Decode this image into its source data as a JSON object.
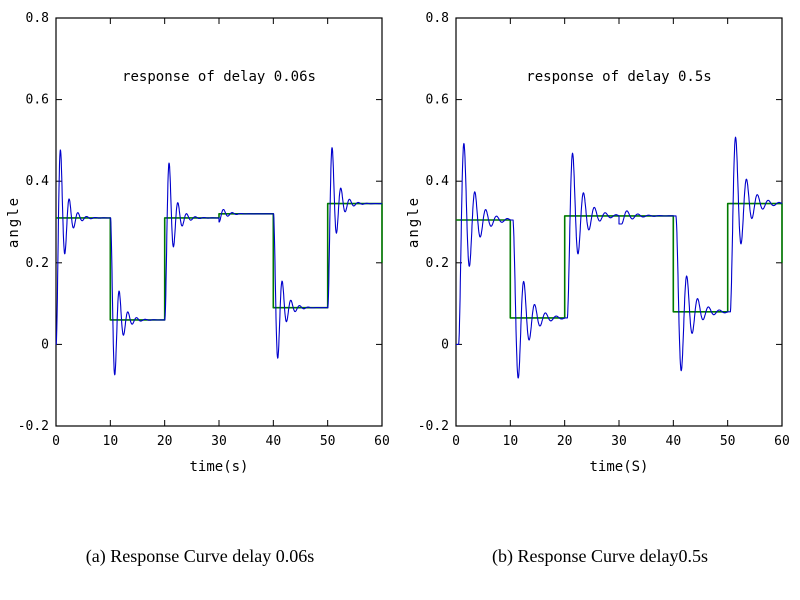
{
  "page": {
    "background": "#ffffff",
    "axis_color": "#000000",
    "reference_color": "#007a00",
    "response_color": "#0000cc"
  },
  "chart_data": [
    {
      "type": "line",
      "title": "response of delay 0.06s",
      "xlabel": "time(s)",
      "ylabel": "angle",
      "caption": "(a) Response Curve delay 0.06s",
      "xlim": [
        0,
        60
      ],
      "ylim": [
        -0.2,
        0.8
      ],
      "xticks": [
        0,
        10,
        20,
        30,
        40,
        50,
        60
      ],
      "xtick_labels": [
        "0",
        "10",
        "20",
        "30",
        "40",
        "50",
        "60"
      ],
      "yticks": [
        -0.2,
        0,
        0.2,
        0.4,
        0.6,
        0.8
      ],
      "ytick_labels": [
        "-0.2",
        "0",
        "0.2",
        "0.4",
        "0.6",
        "0.8"
      ],
      "grid": false,
      "legend": "none",
      "series": [
        {
          "name": "reference-step",
          "color": "#007a00",
          "style": "step",
          "width": 1.6,
          "points": [
            [
              0,
              0.31
            ],
            [
              10,
              0.31
            ],
            [
              10,
              0.06
            ],
            [
              20,
              0.06
            ],
            [
              20,
              0.31
            ],
            [
              30,
              0.31
            ],
            [
              30,
              0.32
            ],
            [
              40,
              0.32
            ],
            [
              40,
              0.09
            ],
            [
              50,
              0.09
            ],
            [
              50,
              0.345
            ],
            [
              60,
              0.345
            ],
            [
              60,
              0.2
            ]
          ]
        },
        {
          "name": "response",
          "color": "#0000cc",
          "style": "damped-oscillation",
          "width": 1.1,
          "delay": 0.06,
          "segments": [
            {
              "t0": 0,
              "t1": 10,
              "from": 0,
              "to": 0.31,
              "period": 1.6,
              "decay": 0.8
            },
            {
              "t0": 10,
              "t1": 20,
              "from": 0.31,
              "to": 0.06,
              "period": 1.6,
              "decay": 0.8
            },
            {
              "t0": 20,
              "t1": 30,
              "from": 0.06,
              "to": 0.31,
              "period": 1.6,
              "decay": 0.8
            },
            {
              "t0": 30,
              "t1": 40,
              "from": 0.3,
              "to": 0.32,
              "period": 1.6,
              "decay": 0.8
            },
            {
              "t0": 40,
              "t1": 50,
              "from": 0.32,
              "to": 0.09,
              "period": 1.6,
              "decay": 0.8
            },
            {
              "t0": 50,
              "t1": 60,
              "from": 0.09,
              "to": 0.345,
              "period": 1.6,
              "decay": 0.8
            }
          ]
        }
      ]
    },
    {
      "type": "line",
      "title": "response of delay 0.5s",
      "xlabel": "time(S)",
      "ylabel": "angle",
      "caption": "(b) Response Curve delay0.5s",
      "xlim": [
        0,
        60
      ],
      "ylim": [
        -0.2,
        0.8
      ],
      "xticks": [
        0,
        10,
        20,
        30,
        40,
        50,
        60
      ],
      "xtick_labels": [
        "0",
        "10",
        "20",
        "30",
        "40",
        "50",
        "60"
      ],
      "yticks": [
        -0.2,
        0,
        0.2,
        0.4,
        0.6,
        0.8
      ],
      "ytick_labels": [
        "-0.2",
        "0",
        "0.2",
        "0.4",
        "0.6",
        "0.8"
      ],
      "grid": false,
      "legend": "none",
      "series": [
        {
          "name": "reference-step",
          "color": "#007a00",
          "style": "step",
          "width": 1.6,
          "points": [
            [
              0,
              0.305
            ],
            [
              10,
              0.305
            ],
            [
              10,
              0.065
            ],
            [
              20,
              0.065
            ],
            [
              20,
              0.315
            ],
            [
              40,
              0.315
            ],
            [
              40,
              0.08
            ],
            [
              50,
              0.08
            ],
            [
              50,
              0.345
            ],
            [
              60,
              0.345
            ],
            [
              60,
              0.2
            ]
          ]
        },
        {
          "name": "response",
          "color": "#0000cc",
          "style": "damped-oscillation",
          "width": 1.1,
          "delay": 0.5,
          "segments": [
            {
              "t0": 0,
              "t1": 10,
              "from": 0,
              "to": 0.305,
              "period": 2.0,
              "decay": 0.5
            },
            {
              "t0": 10,
              "t1": 20,
              "from": 0.305,
              "to": 0.065,
              "period": 2.0,
              "decay": 0.5
            },
            {
              "t0": 20,
              "t1": 30,
              "from": 0.065,
              "to": 0.315,
              "period": 2.0,
              "decay": 0.5
            },
            {
              "t0": 30,
              "t1": 40,
              "from": 0.295,
              "to": 0.315,
              "period": 2.0,
              "decay": 0.5
            },
            {
              "t0": 40,
              "t1": 50,
              "from": 0.315,
              "to": 0.08,
              "period": 2.0,
              "decay": 0.5
            },
            {
              "t0": 50,
              "t1": 60,
              "from": 0.08,
              "to": 0.345,
              "period": 2.0,
              "decay": 0.5
            }
          ]
        }
      ]
    }
  ]
}
